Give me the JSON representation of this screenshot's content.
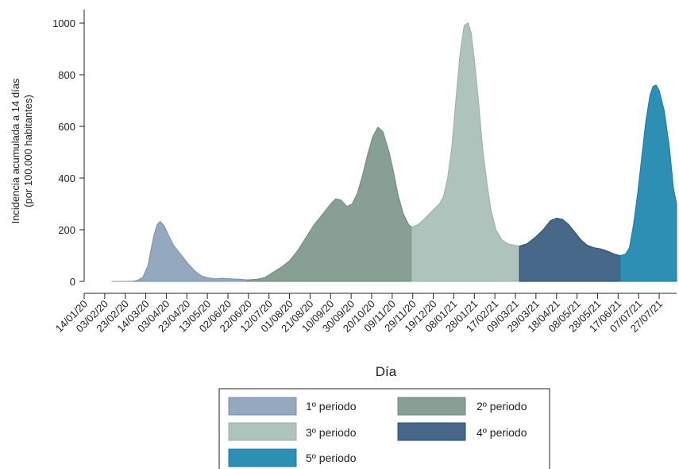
{
  "chart_data": {
    "type": "area",
    "ylabel_line1": "Incidencia acumulada a 14 días",
    "ylabel_line2": "(por 100.000 habitantes)",
    "xlabel": "Día",
    "ylim": [
      0,
      1000
    ],
    "yticks": [
      0,
      200,
      400,
      600,
      800,
      1000
    ],
    "xlim": [
      "2020-01-14",
      "2021-08-13"
    ],
    "xticks": [
      "14/01/20",
      "03/02/20",
      "23/02/20",
      "14/03/20",
      "03/04/20",
      "23/04/20",
      "13/05/20",
      "02/06/20",
      "22/06/20",
      "12/07/20",
      "01/08/20",
      "21/08/20",
      "10/09/20",
      "30/09/20",
      "20/10/20",
      "09/11/20",
      "29/11/20",
      "19/12/20",
      "08/01/21",
      "28/01/21",
      "17/02/21",
      "09/03/21",
      "29/03/21",
      "18/04/21",
      "08/05/21",
      "28/05/21",
      "17/06/21",
      "07/07/21",
      "27/07/21"
    ],
    "grid": false,
    "legend_position": "bottom",
    "series": [
      {
        "name": "1º periodo",
        "color": "#94a8bf",
        "edge": "#7a90aa",
        "x": [
          "2020-02-10",
          "2020-02-23",
          "2020-03-01",
          "2020-03-06",
          "2020-03-11",
          "2020-03-16",
          "2020-03-19",
          "2020-03-22",
          "2020-03-25",
          "2020-03-28",
          "2020-04-01",
          "2020-04-05",
          "2020-04-10",
          "2020-04-15",
          "2020-04-20",
          "2020-04-25",
          "2020-05-01",
          "2020-05-07",
          "2020-05-13",
          "2020-05-20",
          "2020-05-27",
          "2020-06-05",
          "2020-06-14",
          "2020-06-21"
        ],
        "y": [
          0,
          0,
          1,
          4,
          15,
          60,
          120,
          180,
          220,
          232,
          215,
          180,
          140,
          115,
          90,
          65,
          40,
          22,
          14,
          10,
          12,
          10,
          8,
          6
        ]
      },
      {
        "name": "2º periodo",
        "color": "#889f93",
        "edge": "#6f8a7d",
        "x": [
          "2020-06-21",
          "2020-06-30",
          "2020-07-08",
          "2020-07-16",
          "2020-07-24",
          "2020-08-01",
          "2020-08-09",
          "2020-08-17",
          "2020-08-25",
          "2020-09-02",
          "2020-09-10",
          "2020-09-15",
          "2020-09-20",
          "2020-09-26",
          "2020-10-01",
          "2020-10-06",
          "2020-10-11",
          "2020-10-16",
          "2020-10-21",
          "2020-10-26",
          "2020-10-31",
          "2020-11-03",
          "2020-11-06",
          "2020-11-10",
          "2020-11-15",
          "2020-11-20",
          "2020-11-25",
          "2020-11-28"
        ],
        "y": [
          6,
          8,
          15,
          35,
          55,
          80,
          120,
          170,
          220,
          260,
          300,
          320,
          315,
          290,
          300,
          340,
          410,
          490,
          560,
          597,
          580,
          540,
          500,
          430,
          330,
          260,
          220,
          210
        ]
      },
      {
        "name": "3º periodo",
        "color": "#aec3bb",
        "edge": "#98b0a6",
        "x": [
          "2020-11-28",
          "2020-12-04",
          "2020-12-10",
          "2020-12-16",
          "2020-12-21",
          "2020-12-25",
          "2020-12-29",
          "2021-01-02",
          "2021-01-06",
          "2021-01-10",
          "2021-01-14",
          "2021-01-18",
          "2021-01-22",
          "2021-01-25",
          "2021-01-28",
          "2021-02-01",
          "2021-02-05",
          "2021-02-09",
          "2021-02-13",
          "2021-02-18",
          "2021-02-24",
          "2021-03-02",
          "2021-03-08",
          "2021-03-13"
        ],
        "y": [
          210,
          220,
          240,
          265,
          285,
          300,
          330,
          400,
          520,
          700,
          880,
          990,
          1002,
          960,
          860,
          700,
          520,
          390,
          280,
          200,
          160,
          145,
          140,
          137
        ]
      },
      {
        "name": "4º periodo",
        "color": "#476888",
        "edge": "#2e4d6c",
        "x": [
          "2021-03-13",
          "2021-03-20",
          "2021-03-28",
          "2021-04-05",
          "2021-04-12",
          "2021-04-18",
          "2021-04-24",
          "2021-04-30",
          "2021-05-06",
          "2021-05-12",
          "2021-05-18",
          "2021-05-25",
          "2021-06-01",
          "2021-06-08",
          "2021-06-14",
          "2021-06-19"
        ],
        "y": [
          137,
          145,
          170,
          200,
          235,
          245,
          240,
          220,
          190,
          160,
          140,
          130,
          125,
          115,
          105,
          100
        ]
      },
      {
        "name": "5º periodo",
        "color": "#2e8fb5",
        "edge": "#1d7aa0",
        "x": [
          "2021-06-19",
          "2021-06-24",
          "2021-06-28",
          "2021-07-02",
          "2021-07-06",
          "2021-07-10",
          "2021-07-14",
          "2021-07-18",
          "2021-07-21",
          "2021-07-24",
          "2021-07-27",
          "2021-08-01",
          "2021-08-06",
          "2021-08-10",
          "2021-08-13"
        ],
        "y": [
          100,
          105,
          130,
          220,
          340,
          480,
          620,
          720,
          755,
          760,
          740,
          660,
          520,
          360,
          300
        ]
      }
    ]
  }
}
